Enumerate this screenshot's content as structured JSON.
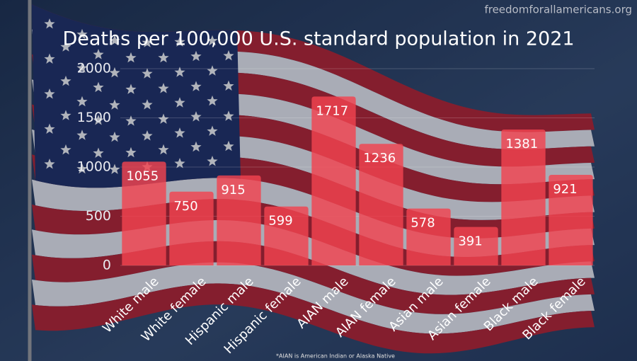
{
  "chart_data": {
    "type": "bar",
    "title": "Deaths per 100,000 U.S. standard population in 2021",
    "source": "freedomforallamericans.org",
    "footnote": "*AIAN is American Indian or Alaska Native",
    "categories": [
      "White male",
      "White female",
      "Hispanic male",
      "Hispanic female",
      "AIAN male",
      "AIAN female",
      "Asian male",
      "Asian female",
      "Black male",
      "Black female"
    ],
    "values": [
      1055,
      750,
      915,
      599,
      1717,
      1236,
      578,
      391,
      1381,
      921
    ],
    "color": "#f2434f",
    "ylim": [
      0,
      2000
    ],
    "yticks": [
      0,
      500,
      1000,
      1500,
      2000
    ],
    "grid": true
  }
}
